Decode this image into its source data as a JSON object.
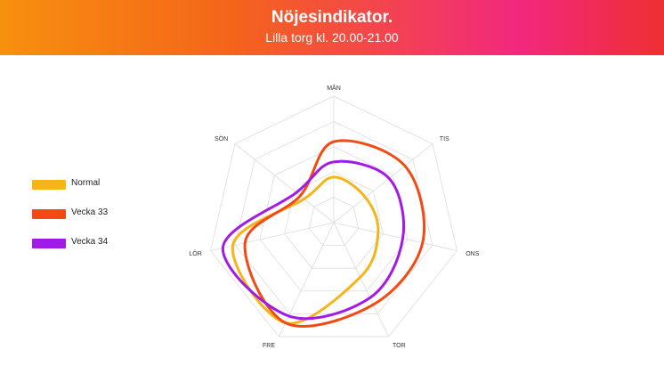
{
  "header": {
    "title": "Nöjesindikator.",
    "subtitle": "Lilla torg kl. 20.00-21.00"
  },
  "chart_data": {
    "type": "radar",
    "categories": [
      "MÅN",
      "TIS",
      "ONS",
      "TOR",
      "FRE",
      "LÖR",
      "SÖN"
    ],
    "rmax": 5,
    "grid_levels": 5,
    "series": [
      {
        "name": "Normal",
        "color": "#f5b417",
        "values": [
          1.8,
          1.6,
          1.8,
          2.4,
          4.4,
          4.1,
          1.5
        ]
      },
      {
        "name": "Vecka 33",
        "color": "#f24a12",
        "values": [
          3.2,
          3.6,
          3.6,
          3.6,
          4.4,
          3.6,
          1.7
        ]
      },
      {
        "name": "Vecka 34",
        "color": "#a21ae6",
        "values": [
          2.4,
          2.8,
          2.8,
          3.3,
          4.1,
          4.5,
          1.9
        ]
      }
    ]
  }
}
